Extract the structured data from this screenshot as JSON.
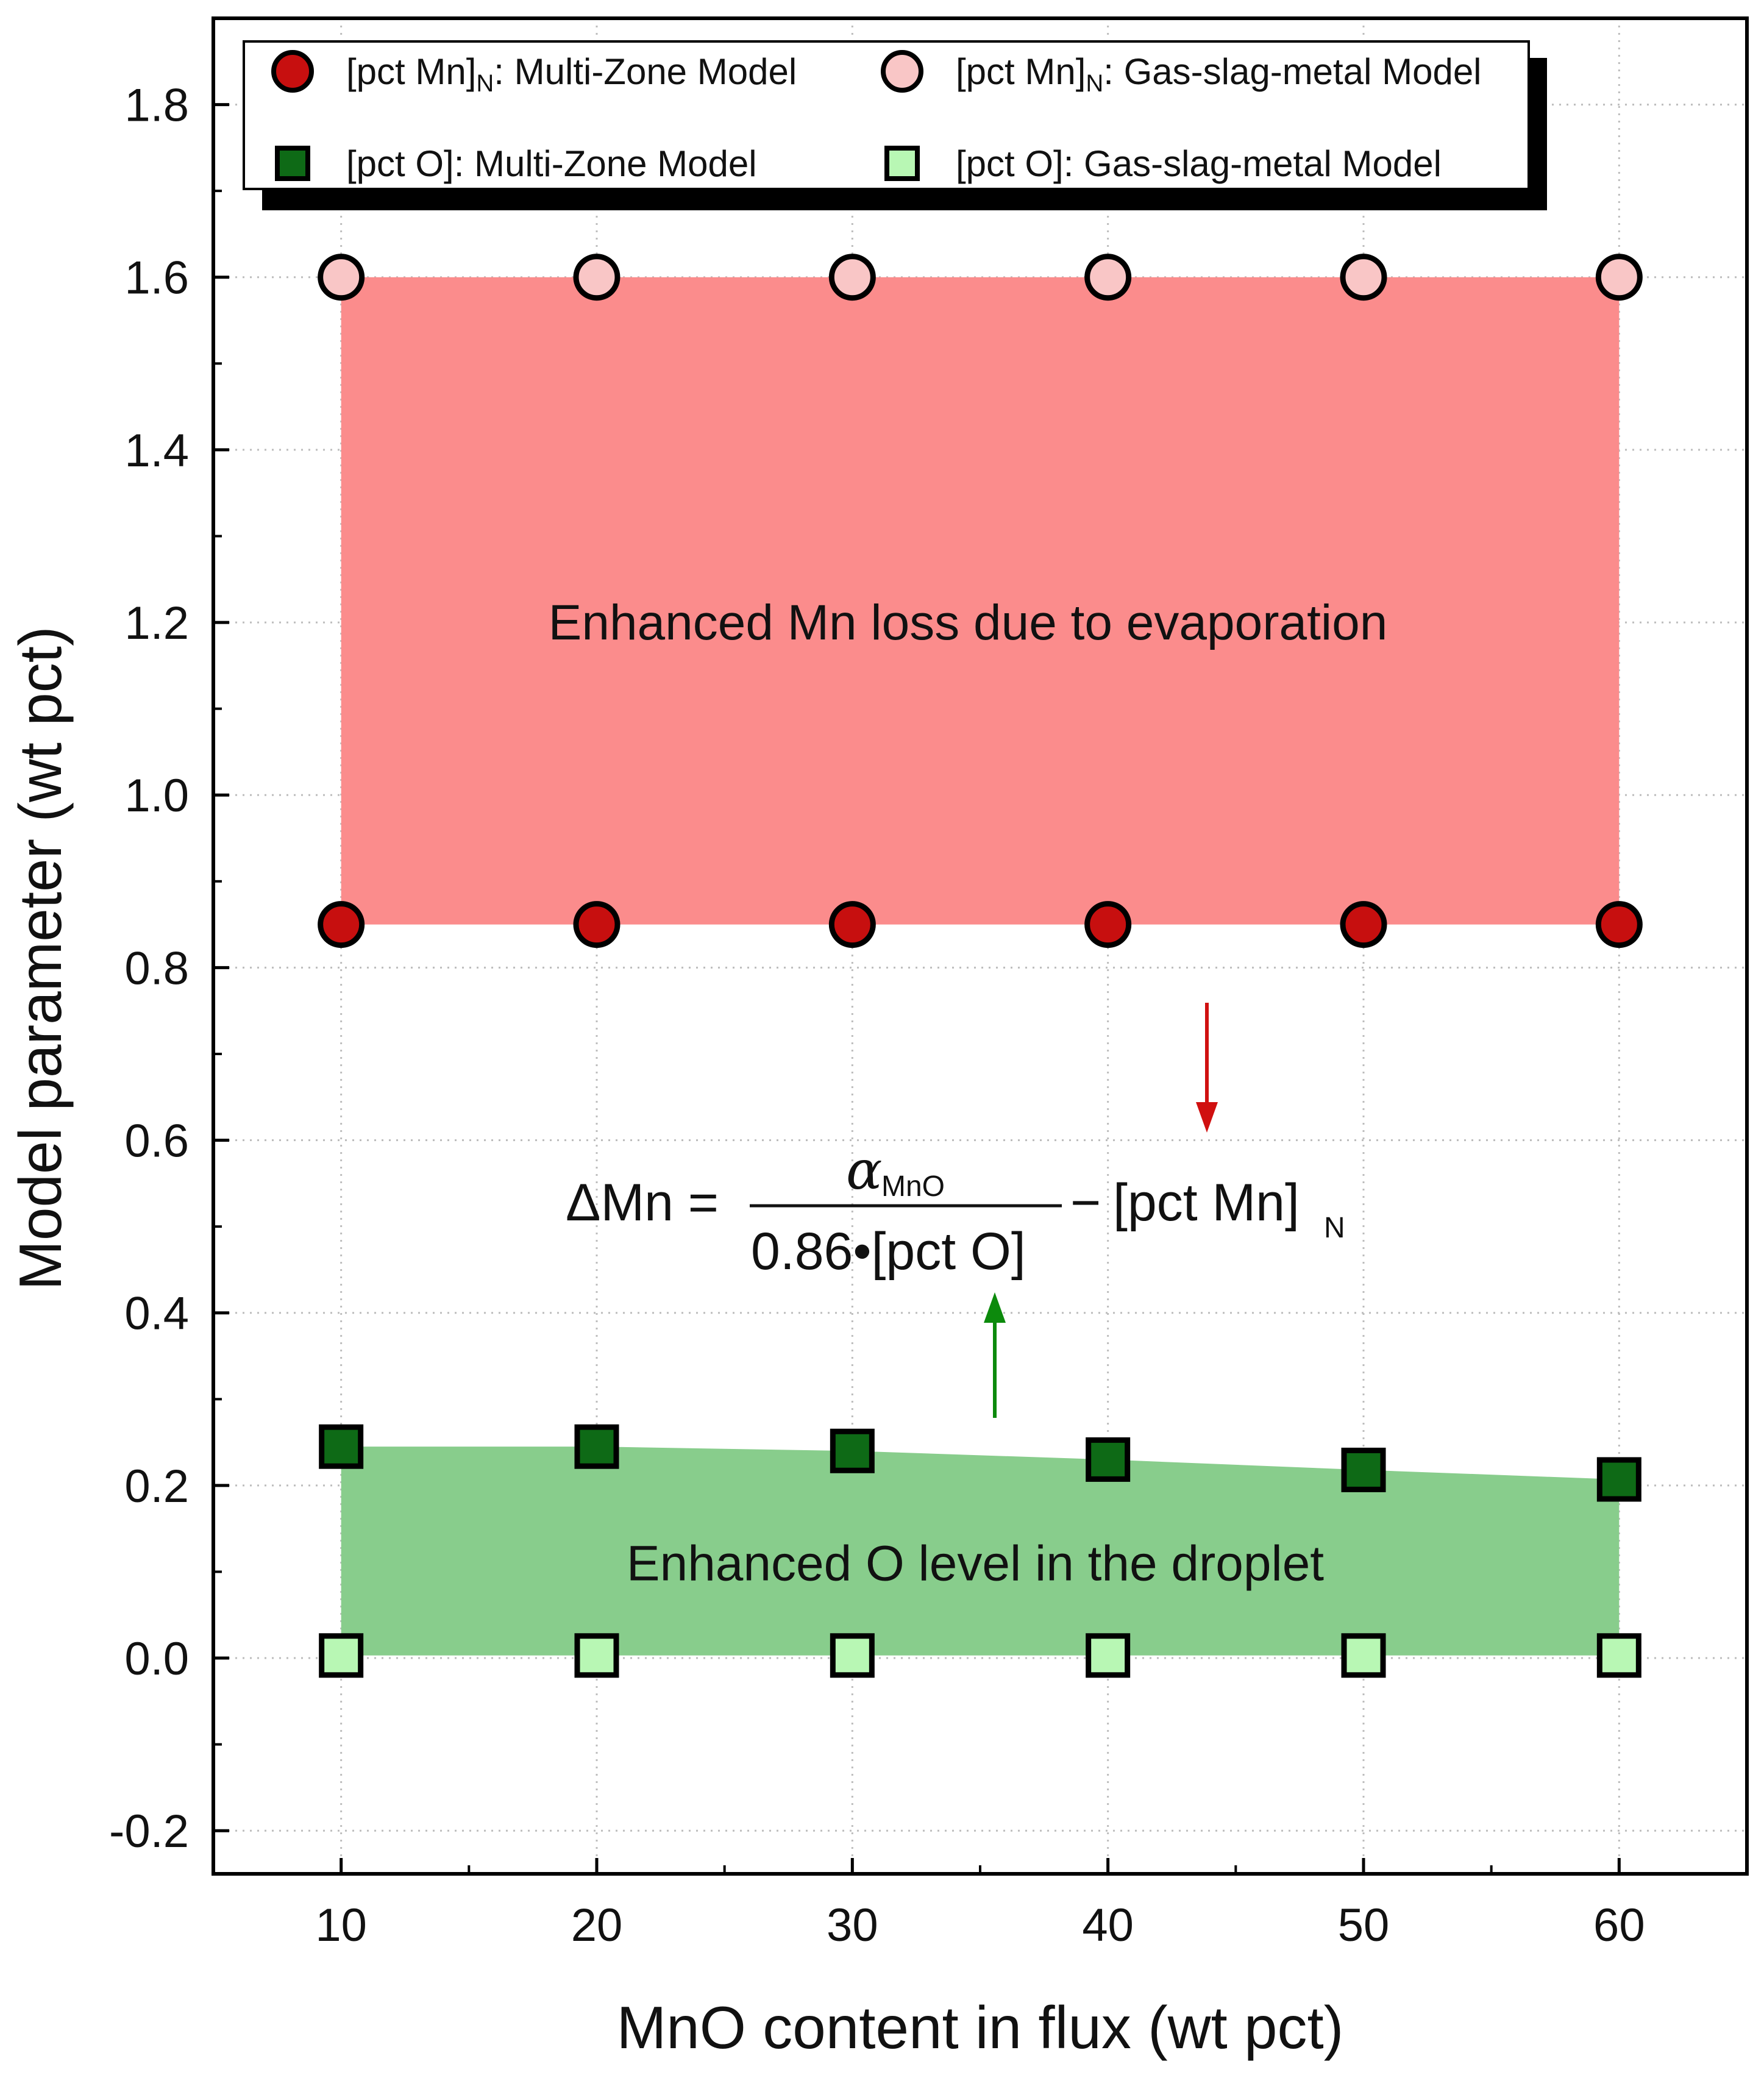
{
  "chart_data": {
    "type": "scatter",
    "xlabel": "MnO content in flux (wt pct)",
    "ylabel": "Model parameter (wt pct)",
    "xlim": [
      5,
      65
    ],
    "ylim": [
      -0.25,
      1.9
    ],
    "xticks": [
      10,
      20,
      30,
      40,
      50,
      60
    ],
    "yticks": [
      -0.2,
      0.0,
      0.2,
      0.4,
      0.6,
      0.8,
      1.0,
      1.2,
      1.4,
      1.6,
      1.8
    ],
    "ytick_labels": [
      "-0.2",
      "0.0",
      "0.2",
      "0.4",
      "0.6",
      "0.8",
      "1.0",
      "1.2",
      "1.4",
      "1.6",
      "1.8"
    ],
    "grid": true,
    "x": [
      10,
      20,
      30,
      40,
      50,
      60
    ],
    "series": [
      {
        "key": "mn_gsm",
        "name": "[pct Mn]N: Gas-slag-metal Model",
        "label_main": "[pct Mn]",
        "label_sub": "N",
        "label_rest": ": Gas-slag-metal Model",
        "marker": "circle",
        "fill": "#F9C6C6",
        "values": [
          1.6,
          1.6,
          1.6,
          1.6,
          1.6,
          1.6
        ]
      },
      {
        "key": "mn_mz",
        "name": "[pct Mn]N: Multi-Zone Model",
        "label_main": "[pct Mn]",
        "label_sub": "N",
        "label_rest": ": Multi-Zone Model",
        "marker": "circle",
        "fill": "#C70F0F",
        "values": [
          0.85,
          0.85,
          0.85,
          0.85,
          0.85,
          0.85
        ]
      },
      {
        "key": "o_mz",
        "name": "[pct O]: Multi-Zone Model",
        "label_main": "[pct O]: Multi-Zone Model",
        "label_sub": "",
        "label_rest": "",
        "marker": "square",
        "fill": "#0E6A16",
        "values": [
          0.245,
          0.245,
          0.24,
          0.23,
          0.218,
          0.207
        ]
      },
      {
        "key": "o_gsm",
        "name": "[pct O]: Gas-slag-metal Model",
        "label_main": "[pct O]: Gas-slag-metal Model",
        "label_sub": "",
        "label_rest": "",
        "marker": "square",
        "fill": "#B8F7B4",
        "values": [
          0.003,
          0.003,
          0.003,
          0.003,
          0.003,
          0.003
        ]
      }
    ],
    "legend_order": [
      "mn_mz",
      "mn_gsm",
      "o_mz",
      "o_gsm"
    ],
    "legend_position": "top",
    "shaded_regions": [
      {
        "name": "mn-loss-region",
        "between": [
          "mn_mz",
          "mn_gsm"
        ],
        "color": "#FB8C8C"
      },
      {
        "name": "o-level-region",
        "between": [
          "o_gsm",
          "o_mz"
        ],
        "color": "#88CD8C"
      }
    ],
    "annotations": {
      "mn_region_text": "Enhanced Mn loss due to evaporation",
      "o_region_text": "Enhanced O level in the droplet",
      "equation": {
        "lhs": "ΔMn =",
        "numerator_symbol": "α",
        "numerator_sub": "MnO",
        "denominator": "0.86•[pct O]",
        "minus": "−",
        "rhs_main": "[pct Mn]",
        "rhs_sub": "N"
      },
      "arrow_down_color": "#D01010",
      "arrow_up_color": "#0C8A0C"
    }
  }
}
